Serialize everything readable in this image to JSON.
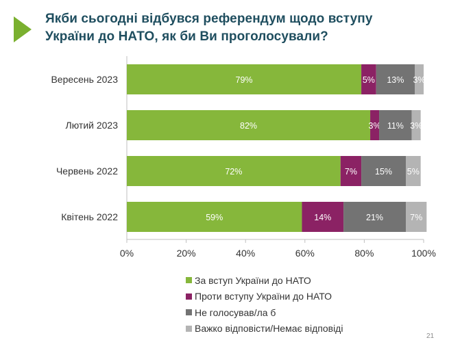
{
  "title_lines": [
    "Якби сьогодні відбувся референдум щодо вступу",
    "України до НАТО, як би Ви проголосували?"
  ],
  "page_number": "21",
  "accent_color": "#7ab02f",
  "title_color": "#1f4e5f",
  "chart_data": {
    "type": "bar",
    "orientation": "horizontal",
    "stacked": true,
    "categories": [
      "Вересень 2023",
      "Лютий 2023",
      "Червень 2022",
      "Квітень 2022"
    ],
    "series": [
      {
        "name": "За вступ України до НАТО",
        "color": "#86b73b",
        "values": [
          79,
          82,
          72,
          59
        ],
        "labels": [
          "79%",
          "82%",
          "72%",
          "59%"
        ]
      },
      {
        "name": "Проти вступу України до НАТО",
        "color": "#8b2264",
        "values": [
          5,
          3,
          7,
          14
        ],
        "labels": [
          "5%",
          "3%",
          "7%",
          "14%"
        ]
      },
      {
        "name": "Не голосував/ла б",
        "color": "#737373",
        "values": [
          13,
          11,
          15,
          21
        ],
        "labels": [
          "13%",
          "11%",
          "15%",
          "21%"
        ]
      },
      {
        "name": "Важко відповісти/Немає відповіді",
        "color": "#b4b4b4",
        "values": [
          3,
          3,
          5,
          7
        ],
        "labels": [
          "3%",
          "3%",
          "5%",
          "7%"
        ]
      }
    ],
    "xlim": [
      0,
      100
    ],
    "xticks": [
      "0%",
      "20%",
      "40%",
      "60%",
      "80%",
      "100%"
    ],
    "xtick_values": [
      0,
      20,
      40,
      60,
      80,
      100
    ],
    "grid": false,
    "legend_position": "bottom"
  }
}
